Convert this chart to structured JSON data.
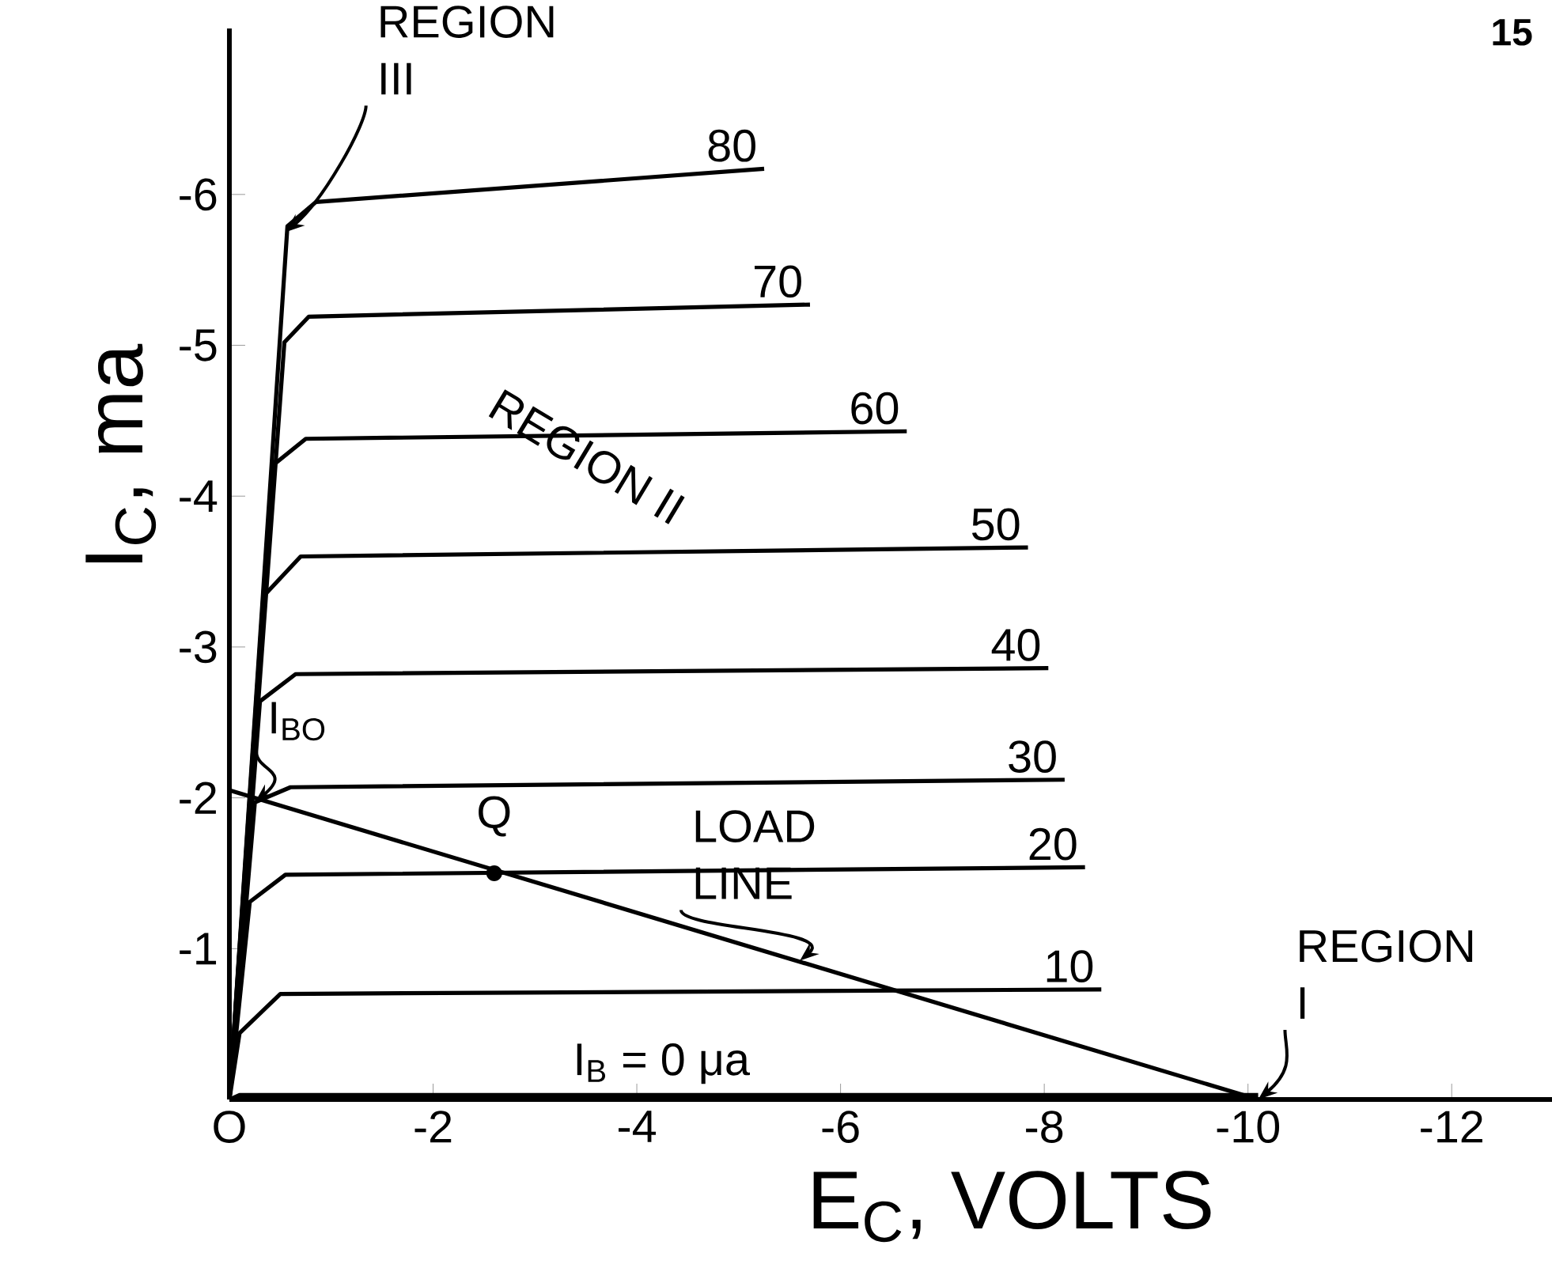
{
  "chart_data": {
    "type": "line",
    "xlabel": "E$_{C}$, VOLTS",
    "ylabel": "I$_{C}$, ma",
    "xlim": [
      0,
      -13
    ],
    "ylim": [
      0,
      -7.1
    ],
    "xticks": [
      {
        "value": 0,
        "label": "O"
      },
      -2,
      -4,
      -6,
      -8,
      -10,
      -12
    ],
    "yticks": [
      -1,
      -2,
      -3,
      -4,
      -5,
      -6
    ],
    "grid": false,
    "legend": false,
    "marker": "none",
    "line_style": "solid",
    "series": [
      {
        "name": "80",
        "color": "#000000",
        "x": [
          0,
          -0.57,
          -0.85,
          -5.25
        ],
        "values": [
          0,
          -5.79,
          -5.95,
          -6.17
        ]
      },
      {
        "name": "70",
        "color": "#000000",
        "x": [
          0,
          -0.54,
          -0.78,
          -5.7
        ],
        "values": [
          0,
          -5.02,
          -5.19,
          -5.27
        ]
      },
      {
        "name": "60",
        "color": "#000000",
        "x": [
          0,
          -0.42,
          -0.75,
          -6.65
        ],
        "values": [
          0,
          -4.2,
          -4.38,
          -4.43
        ]
      },
      {
        "name": "50",
        "color": "#000000",
        "x": [
          0,
          -0.34,
          -0.7,
          -7.84
        ],
        "values": [
          0,
          -3.34,
          -3.6,
          -3.66
        ]
      },
      {
        "name": "40",
        "color": "#000000",
        "x": [
          0,
          -0.3,
          -0.65,
          -8.04
        ],
        "values": [
          0,
          -2.64,
          -2.82,
          -2.86
        ]
      },
      {
        "name": "30",
        "color": "#000000",
        "x": [
          0,
          -0.25,
          -0.6,
          -8.2
        ],
        "values": [
          0,
          -1.97,
          -2.07,
          -2.12
        ]
      },
      {
        "name": "20",
        "color": "#000000",
        "x": [
          0,
          -0.2,
          -0.55,
          -8.4
        ],
        "values": [
          0,
          -1.31,
          -1.49,
          -1.54
        ]
      },
      {
        "name": "10",
        "color": "#000000",
        "x": [
          0,
          -0.1,
          -0.5,
          -8.56
        ],
        "values": [
          0,
          -0.44,
          -0.7,
          -0.73
        ]
      },
      {
        "name": "I$_{B}$ = 0 μa",
        "color": "#000000",
        "x": [
          0,
          -0.1,
          -10.1
        ],
        "values": [
          0,
          -0.03,
          -0.03
        ]
      },
      {
        "color": "#000000",
        "x": [
          0,
          -10.1
        ],
        "values": [
          -2.05,
          0
        ]
      }
    ],
    "annotations": [
      {
        "text": "REGION III",
        "x": -0.55,
        "y": -5.75
      },
      "REGION II",
      {
        "text": "I$_{BO}$",
        "x": -0.25,
        "y": -1.97
      },
      {
        "text": "Q",
        "x": -2.6,
        "y": -1.5
      },
      {
        "text": "LOAD LINE",
        "x": -5.6,
        "y": -0.92
      },
      {
        "text": "REGION I",
        "x": -10.1,
        "y": 0
      },
      "15"
    ]
  }
}
